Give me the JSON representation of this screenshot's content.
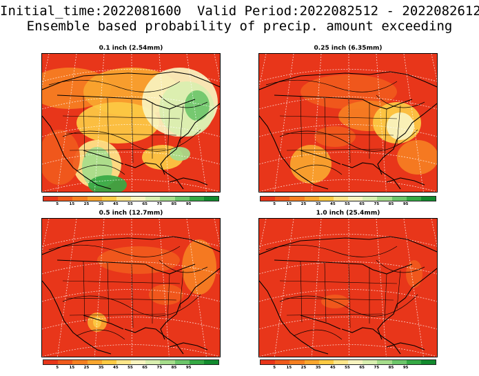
{
  "header": {
    "line1": "Initial_time:2022081600  Valid Period:2022082512 - 2022082612",
    "line2": "Ensemble based probability of precip. amount exceeding"
  },
  "panels": [
    {
      "id": "p1",
      "title": "0.1 inch (2.54mm)",
      "regime": "mixed"
    },
    {
      "id": "p2",
      "title": "0.25 inch (6.35mm)",
      "regime": "mostly-low"
    },
    {
      "id": "p3",
      "title": "0.5 inch (12.7mm)",
      "regime": "low"
    },
    {
      "id": "p4",
      "title": "1.0 inch (25.4mm)",
      "regime": "very-low"
    }
  ],
  "colorbar": {
    "colors": [
      "#e8361a",
      "#f05a1c",
      "#f57f22",
      "#f9a62f",
      "#fcca44",
      "#fde68a",
      "#f8f4c0",
      "#d9efb0",
      "#a6dd8c",
      "#6cc56a",
      "#35a844",
      "#128a2e"
    ],
    "labels": [
      "5",
      "15",
      "25",
      "35",
      "45",
      "55",
      "65",
      "75",
      "85",
      "95"
    ]
  }
}
